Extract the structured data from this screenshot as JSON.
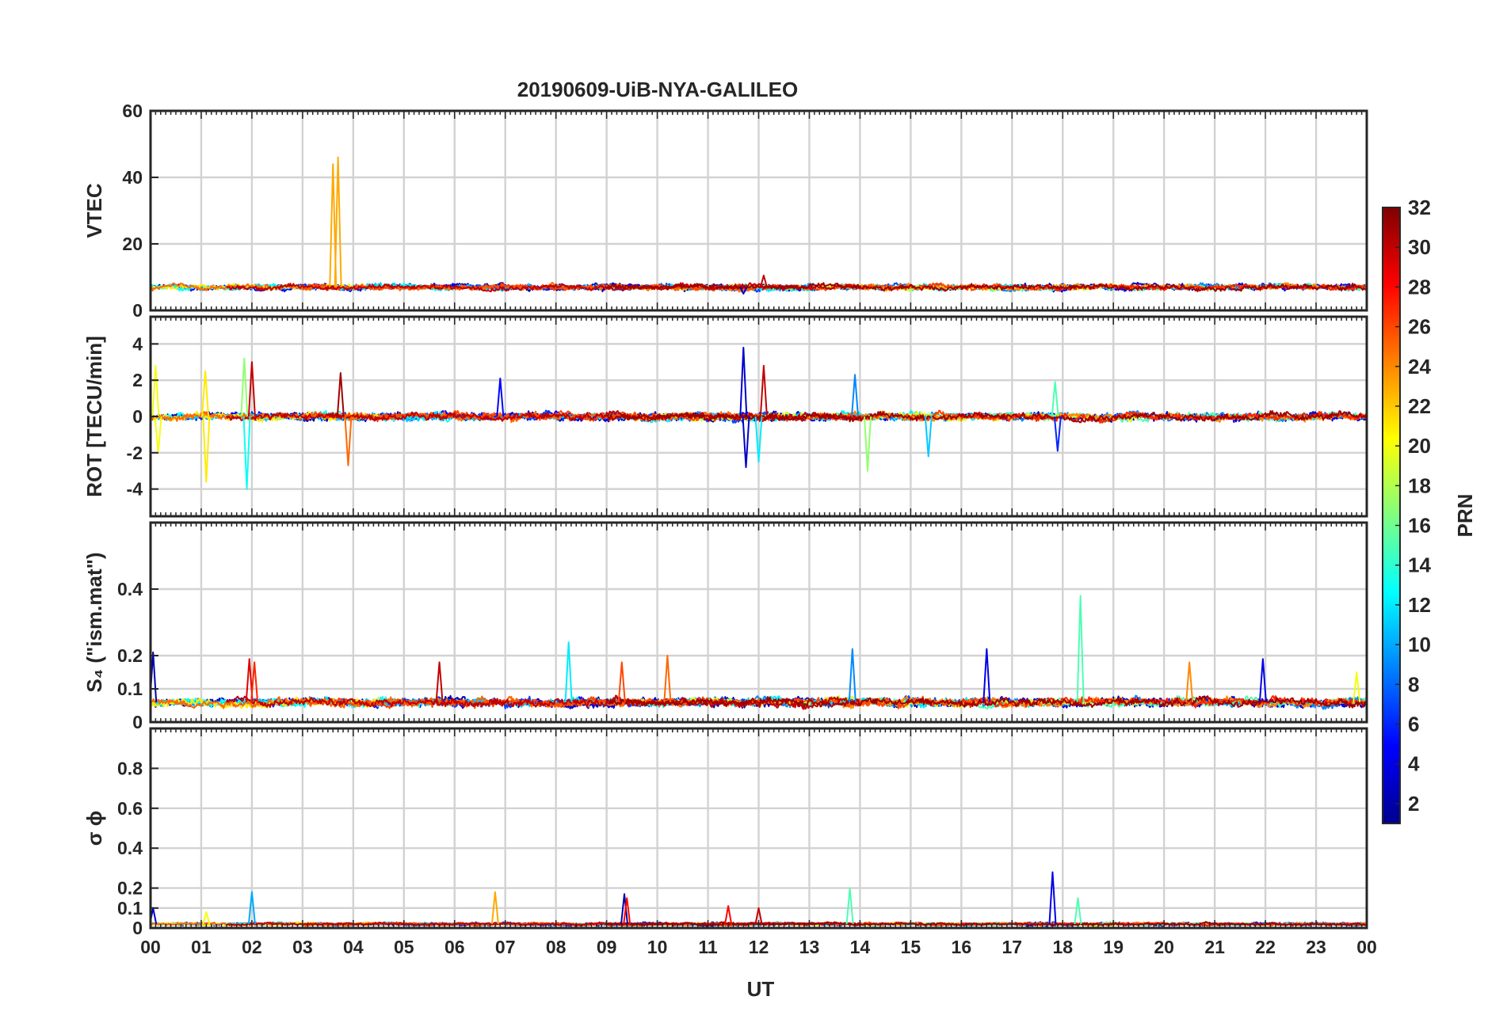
{
  "chart_data": {
    "type": "line",
    "title": "20190609-UiB-NYA-GALILEO",
    "xlabel": "UT",
    "x_range": [
      0,
      24
    ],
    "x_tick_labels": [
      "00",
      "01",
      "02",
      "03",
      "04",
      "05",
      "06",
      "07",
      "08",
      "09",
      "10",
      "11",
      "12",
      "13",
      "14",
      "15",
      "16",
      "17",
      "18",
      "19",
      "20",
      "21",
      "22",
      "23",
      "00"
    ],
    "grid": true,
    "colorbar": {
      "label": "PRN",
      "range": [
        1,
        32
      ],
      "ticks": [
        2,
        4,
        6,
        8,
        10,
        12,
        14,
        16,
        18,
        20,
        22,
        24,
        26,
        28,
        30,
        32
      ],
      "colormap": "jet",
      "colors": [
        "#00008f",
        "#0000ff",
        "#0080ff",
        "#00ffff",
        "#80ff80",
        "#ffff00",
        "#ff8000",
        "#ff0000",
        "#800000"
      ]
    },
    "panels": [
      {
        "ylabel": "VTEC",
        "ylim": [
          0,
          60
        ],
        "yticks": [
          0,
          20,
          40,
          60
        ],
        "baseline": 7,
        "noise": 1.0,
        "spikes": [
          {
            "x": 3.6,
            "y": 44,
            "prn": 23
          },
          {
            "x": 3.7,
            "y": 46,
            "prn": 23
          },
          {
            "x": 11.7,
            "y": 5,
            "prn": 3
          },
          {
            "x": 12.1,
            "y": 10.5,
            "prn": 30
          }
        ]
      },
      {
        "ylabel": "ROT [TECU/min]",
        "ylim": [
          -5.5,
          5.5
        ],
        "yticks": [
          -4,
          -2,
          0,
          2,
          4
        ],
        "baseline": 0,
        "noise": 0.25,
        "spikes": [
          {
            "x": 0.1,
            "y": 2.8,
            "prn": 20
          },
          {
            "x": 0.15,
            "y": -2.0,
            "prn": 20
          },
          {
            "x": 1.08,
            "y": 2.5,
            "prn": 21
          },
          {
            "x": 1.1,
            "y": -3.6,
            "prn": 21
          },
          {
            "x": 1.9,
            "y": -4.0,
            "prn": 13
          },
          {
            "x": 1.85,
            "y": 3.2,
            "prn": 17
          },
          {
            "x": 2.0,
            "y": 3.0,
            "prn": 30
          },
          {
            "x": 3.75,
            "y": 2.4,
            "prn": 31
          },
          {
            "x": 3.9,
            "y": -2.7,
            "prn": 25
          },
          {
            "x": 6.9,
            "y": 2.1,
            "prn": 5
          },
          {
            "x": 11.7,
            "y": 3.8,
            "prn": 3
          },
          {
            "x": 11.75,
            "y": -2.8,
            "prn": 3
          },
          {
            "x": 12.0,
            "y": -2.5,
            "prn": 12
          },
          {
            "x": 12.1,
            "y": 2.8,
            "prn": 30
          },
          {
            "x": 13.9,
            "y": 2.3,
            "prn": 9
          },
          {
            "x": 14.15,
            "y": -3.0,
            "prn": 17
          },
          {
            "x": 15.35,
            "y": -2.2,
            "prn": 11
          },
          {
            "x": 17.85,
            "y": 1.9,
            "prn": 15
          },
          {
            "x": 17.9,
            "y": -1.9,
            "prn": 6
          }
        ]
      },
      {
        "ylabel": "S₄ (\"ism.mat\")",
        "ylim": [
          0,
          0.6
        ],
        "yticks": [
          0,
          0.1,
          0.2,
          0.4
        ],
        "baseline": 0.06,
        "noise": 0.015,
        "spikes": [
          {
            "x": 0.05,
            "y": 0.21,
            "prn": 2
          },
          {
            "x": 1.95,
            "y": 0.19,
            "prn": 29
          },
          {
            "x": 2.05,
            "y": 0.18,
            "prn": 27
          },
          {
            "x": 5.7,
            "y": 0.18,
            "prn": 30
          },
          {
            "x": 8.25,
            "y": 0.24,
            "prn": 12
          },
          {
            "x": 9.3,
            "y": 0.18,
            "prn": 26
          },
          {
            "x": 10.2,
            "y": 0.2,
            "prn": 25
          },
          {
            "x": 13.85,
            "y": 0.22,
            "prn": 9
          },
          {
            "x": 16.5,
            "y": 0.22,
            "prn": 4
          },
          {
            "x": 18.35,
            "y": 0.38,
            "prn": 15
          },
          {
            "x": 20.5,
            "y": 0.18,
            "prn": 24
          },
          {
            "x": 21.95,
            "y": 0.19,
            "prn": 4
          },
          {
            "x": 23.8,
            "y": 0.15,
            "prn": 20
          }
        ]
      },
      {
        "ylabel": "σ ϕ",
        "ylim": [
          0,
          1
        ],
        "yticks": [
          0,
          0.1,
          0.2,
          0.4,
          0.6,
          0.8
        ],
        "baseline": 0.02,
        "noise": 0.008,
        "spikes": [
          {
            "x": 0.05,
            "y": 0.1,
            "prn": 3
          },
          {
            "x": 1.1,
            "y": 0.08,
            "prn": 20
          },
          {
            "x": 2.0,
            "y": 0.18,
            "prn": 10
          },
          {
            "x": 6.8,
            "y": 0.18,
            "prn": 23
          },
          {
            "x": 9.35,
            "y": 0.17,
            "prn": 2
          },
          {
            "x": 9.4,
            "y": 0.15,
            "prn": 28
          },
          {
            "x": 11.4,
            "y": 0.11,
            "prn": 28
          },
          {
            "x": 12.0,
            "y": 0.1,
            "prn": 30
          },
          {
            "x": 13.8,
            "y": 0.2,
            "prn": 15
          },
          {
            "x": 17.8,
            "y": 0.28,
            "prn": 4
          },
          {
            "x": 18.3,
            "y": 0.15,
            "prn": 15
          }
        ]
      }
    ],
    "series": [
      {
        "prn": 2,
        "start": 0.0,
        "end": 13.0
      },
      {
        "prn": 3,
        "start": 8.0,
        "end": 24.0
      },
      {
        "prn": 4,
        "start": 16.4,
        "end": 24.0
      },
      {
        "prn": 5,
        "start": 0.5,
        "end": 9.5
      },
      {
        "prn": 7,
        "start": 2.0,
        "end": 15.5
      },
      {
        "prn": 9,
        "start": 10.5,
        "end": 24.0
      },
      {
        "prn": 11,
        "start": 0.0,
        "end": 7.5
      },
      {
        "prn": 12,
        "start": 7.8,
        "end": 18.0
      },
      {
        "prn": 13,
        "start": 0.0,
        "end": 6.0
      },
      {
        "prn": 15,
        "start": 14.0,
        "end": 24.0
      },
      {
        "prn": 19,
        "start": 9.5,
        "end": 19.5
      },
      {
        "prn": 21,
        "start": 0.0,
        "end": 4.5
      },
      {
        "prn": 24,
        "start": 13.5,
        "end": 24.0
      },
      {
        "prn": 25,
        "start": 0.0,
        "end": 12.0
      },
      {
        "prn": 26,
        "start": 3.0,
        "end": 16.5
      },
      {
        "prn": 27,
        "start": 16.0,
        "end": 24.0
      },
      {
        "prn": 30,
        "start": 1.5,
        "end": 14.0
      },
      {
        "prn": 31,
        "start": 9.0,
        "end": 24.0
      }
    ]
  }
}
